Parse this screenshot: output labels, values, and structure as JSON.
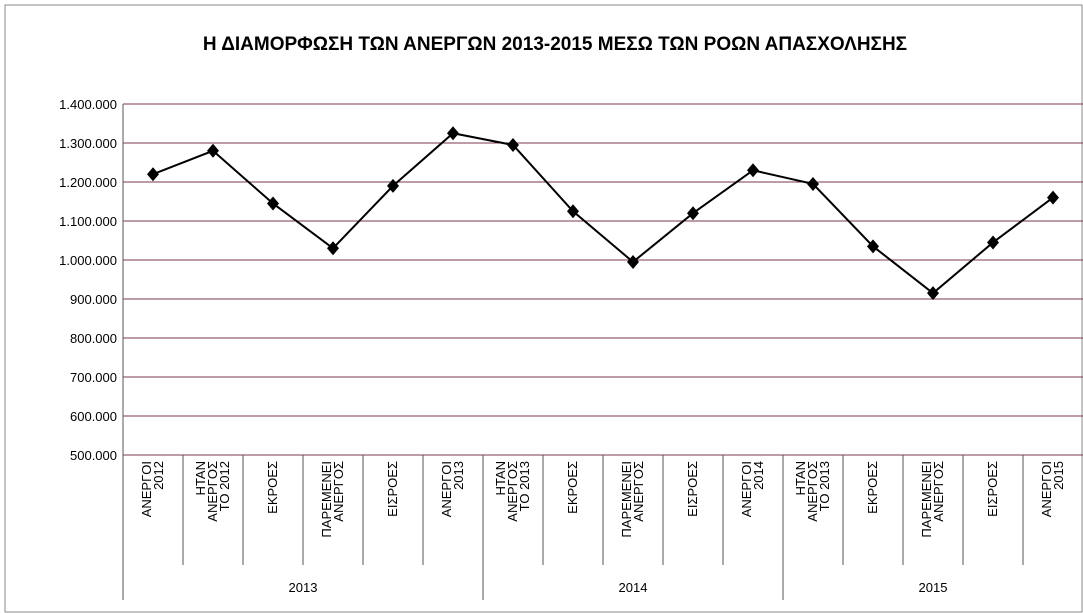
{
  "chart_data": {
    "type": "line",
    "title": "Η ΔΙΑΜΟΡΦΩΣΗ ΤΩΝ ΑΝΕΡΓΩΝ 2013-2015 ΜΕΣΩ ΤΩΝ ΡΟΩΝ ΑΠΑΣΧΟΛΗΣΗΣ",
    "categories": [
      [
        "ΑΝΕΡΓΟΙ",
        "2012"
      ],
      [
        "ΗΤΑΝ",
        "ΑΝΕΡΓΟΣ",
        "ΤΟ 2012"
      ],
      [
        "ΕΚΡΟΕΣ"
      ],
      [
        "ΠΑΡΕΜΕΝΕΙ",
        "ΑΝΕΡΓΟΣ"
      ],
      [
        "ΕΙΣΡΟΕΣ"
      ],
      [
        "ΑΝΕΡΓΟΙ",
        "2013"
      ],
      [
        "ΗΤΑΝ",
        "ΑΝΕΡΓΟΣ",
        "ΤΟ 2013"
      ],
      [
        "ΕΚΡΟΕΣ"
      ],
      [
        "ΠΑΡΕΜΕΝΕΙ",
        "ΑΝΕΡΓΟΣ"
      ],
      [
        "ΕΙΣΡΟΕΣ"
      ],
      [
        "ΑΝΕΡΓΟΙ",
        "2014"
      ],
      [
        "ΗΤΑΝ",
        "ΑΝΕΡΓΟΣ",
        "ΤΟ 2013"
      ],
      [
        "ΕΚΡΟΕΣ"
      ],
      [
        "ΠΑΡΕΜΕΝΕΙ",
        "ΑΝΕΡΓΟΣ"
      ],
      [
        "ΕΙΣΡΟΕΣ"
      ],
      [
        "ΑΝΕΡΓΟΙ",
        "2015"
      ]
    ],
    "groups": [
      {
        "label": "2013",
        "size": 6
      },
      {
        "label": "2014",
        "size": 5
      },
      {
        "label": "2015",
        "size": 5
      }
    ],
    "series": [
      {
        "color": "#000000",
        "values": [
          1220000,
          1280000,
          1145000,
          1030000,
          1190000,
          1325000,
          1295000,
          1125000,
          995000,
          1120000,
          1230000,
          1195000,
          1035000,
          915000,
          1045000,
          1160000
        ]
      }
    ],
    "ylim": [
      500000,
      1400000
    ],
    "yticks": [
      {
        "value": 500000,
        "label": "500.000"
      },
      {
        "value": 600000,
        "label": "600.000"
      },
      {
        "value": 700000,
        "label": "700.000"
      },
      {
        "value": 800000,
        "label": "800.000"
      },
      {
        "value": 900000,
        "label": "900.000"
      },
      {
        "value": 1000000,
        "label": "1.000.000"
      },
      {
        "value": 1100000,
        "label": "1.100.000"
      },
      {
        "value": 1200000,
        "label": "1.200.000"
      },
      {
        "value": 1300000,
        "label": "1.300.000"
      },
      {
        "value": 1400000,
        "label": "1.400.000"
      }
    ],
    "grid": true,
    "grid_color": "#7b3a55"
  }
}
